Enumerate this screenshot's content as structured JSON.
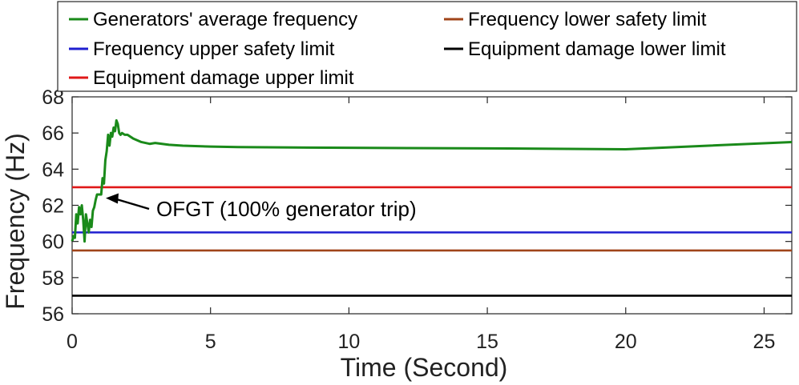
{
  "chart_data": {
    "type": "line",
    "xlabel": "Time (Second)",
    "ylabel": "Frequency (Hz)",
    "xlim": [
      0,
      26
    ],
    "ylim": [
      56,
      68
    ],
    "xticks": [
      0,
      5,
      10,
      15,
      20,
      25
    ],
    "yticks": [
      56,
      58,
      60,
      62,
      64,
      66,
      68
    ],
    "grid": false,
    "legend_position": "top",
    "series": [
      {
        "name": "Generators' average frequency",
        "color": "#1a8a1a",
        "x": [
          0,
          0.05,
          0.1,
          0.15,
          0.2,
          0.25,
          0.3,
          0.35,
          0.4,
          0.45,
          0.5,
          0.55,
          0.6,
          0.65,
          0.7,
          0.75,
          0.8,
          0.85,
          0.9,
          0.95,
          1.0,
          1.05,
          1.1,
          1.15,
          1.2,
          1.25,
          1.3,
          1.35,
          1.4,
          1.45,
          1.5,
          1.55,
          1.6,
          1.65,
          1.7,
          1.75,
          1.8,
          1.9,
          2.0,
          2.2,
          2.5,
          2.8,
          3.0,
          3.5,
          4.0,
          5.0,
          6.0,
          8.0,
          10.0,
          15.0,
          20.0,
          26.0
        ],
        "y": [
          60.0,
          60.3,
          60.2,
          61.5,
          61.0,
          61.9,
          61.5,
          62.0,
          61.2,
          60.0,
          61.5,
          61.0,
          60.5,
          61.2,
          60.8,
          61.7,
          61.9,
          62.3,
          62.6,
          62.6,
          62.6,
          62.6,
          63.5,
          63.2,
          64.5,
          65.0,
          65.9,
          65.3,
          66.0,
          65.8,
          66.3,
          66.1,
          66.7,
          66.5,
          66.0,
          65.9,
          66.0,
          65.9,
          65.9,
          65.7,
          65.5,
          65.4,
          65.45,
          65.35,
          65.3,
          65.25,
          65.22,
          65.2,
          65.18,
          65.15,
          65.1,
          65.5
        ]
      },
      {
        "name": "Frequency upper safety limit",
        "color": "#1f1fd0",
        "x": [
          0,
          26
        ],
        "y": [
          60.5,
          60.5
        ]
      },
      {
        "name": "Equipment damage upper limit",
        "color": "#e01818",
        "x": [
          0,
          26
        ],
        "y": [
          63,
          63
        ]
      },
      {
        "name": "Frequency lower safety limit",
        "color": "#a0441a",
        "x": [
          0,
          26
        ],
        "y": [
          59.5,
          59.5
        ]
      },
      {
        "name": "Equipment damage lower limit",
        "color": "#000000",
        "x": [
          0,
          26
        ],
        "y": [
          57,
          57
        ]
      }
    ],
    "annotations": [
      {
        "text": "OFGT (100% generator trip)",
        "point": [
          1.1,
          62.4
        ]
      }
    ]
  }
}
